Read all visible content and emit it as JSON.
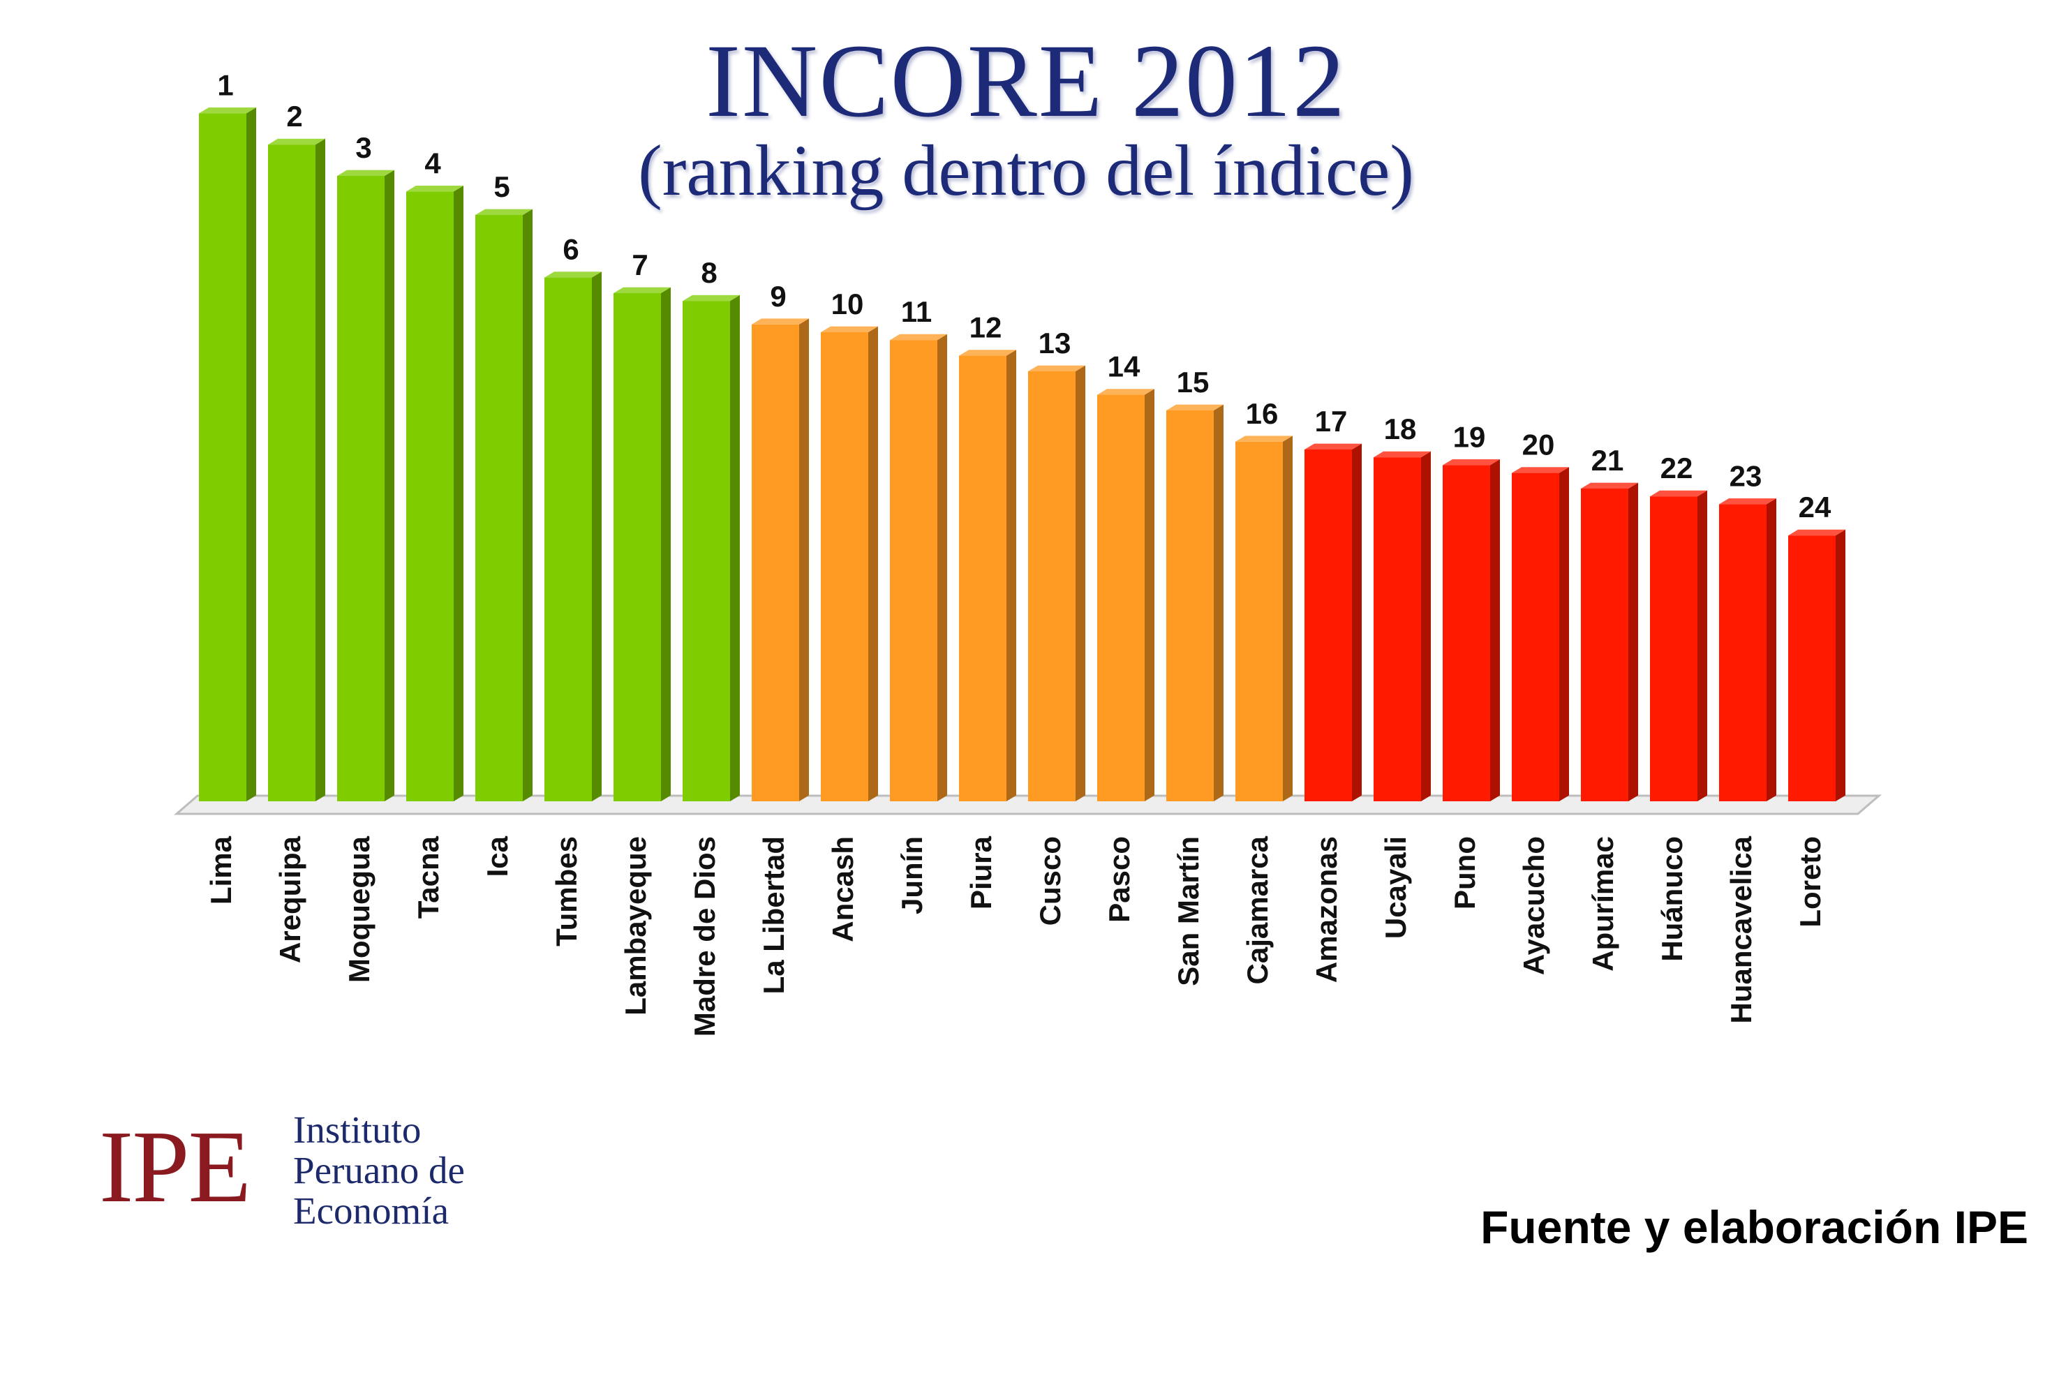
{
  "header": {
    "title": "INCORE 2012",
    "subtitle": "(ranking dentro del índice)"
  },
  "colors": {
    "group_top": "#7fcc00",
    "group_middle": "#ff9a22",
    "group_bottom": "#ff1a00",
    "title": "#1c2a78",
    "logo_red": "#8a1a1f",
    "logo_blue": "#1c2a6b"
  },
  "chart_data": {
    "type": "bar",
    "title": "INCORE 2012",
    "subtitle": "(ranking dentro del índice)",
    "xlabel": "",
    "ylabel": "",
    "y_axis_shown": false,
    "grid": false,
    "style": "3d",
    "categories": [
      "Lima",
      "Arequipa",
      "Moquegua",
      "Tacna",
      "Ica",
      "Tumbes",
      "Lambayeque",
      "Madre de Dios",
      "La Libertad",
      "Ancash",
      "Junín",
      "Piura",
      "Cusco",
      "Pasco",
      "San Martín",
      "Cajamarca",
      "Amazonas",
      "Ucayali",
      "Puno",
      "Ayacucho",
      "Apurímac",
      "Huánuco",
      "Huancavelica",
      "Loreto"
    ],
    "rank_labels": [
      "1",
      "2",
      "3",
      "4",
      "5",
      "6",
      "7",
      "8",
      "9",
      "10",
      "11",
      "12",
      "13",
      "14",
      "15",
      "16",
      "17",
      "18",
      "19",
      "20",
      "21",
      "22",
      "23",
      "24"
    ],
    "relative_heights": [
      0.88,
      0.84,
      0.8,
      0.78,
      0.75,
      0.67,
      0.65,
      0.64,
      0.61,
      0.6,
      0.59,
      0.57,
      0.55,
      0.52,
      0.5,
      0.46,
      0.45,
      0.44,
      0.43,
      0.42,
      0.4,
      0.39,
      0.38,
      0.34
    ],
    "color_groups": [
      "top",
      "top",
      "top",
      "top",
      "top",
      "top",
      "top",
      "top",
      "middle",
      "middle",
      "middle",
      "middle",
      "middle",
      "middle",
      "middle",
      "middle",
      "bottom",
      "bottom",
      "bottom",
      "bottom",
      "bottom",
      "bottom",
      "bottom",
      "bottom"
    ]
  },
  "logo": {
    "letters": "IPE",
    "name_lines": [
      "Instituto",
      "Peruano de",
      "Economía"
    ]
  },
  "footer": {
    "source": "Fuente y elaboración IPE"
  }
}
